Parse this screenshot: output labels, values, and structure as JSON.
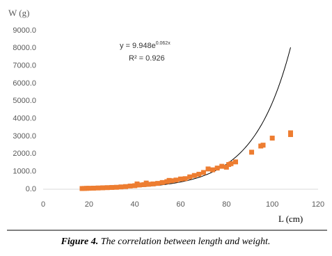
{
  "chart_data": {
    "type": "scatter",
    "y_label": "W (g)",
    "x_label": "L (cm)",
    "equation_prefix": "y = 9.948e",
    "equation_exponent": "0.062x",
    "r_squared_label": "R² = 0.926",
    "caption_label": "Figure 4.",
    "caption_text": "The correlation between length and weight.",
    "color": "#ed7d31",
    "trendline_color": "#000000",
    "trendline": {
      "a": 9.948,
      "b": 0.062,
      "xlim": [
        17,
        108
      ]
    },
    "x": [
      17,
      18,
      19,
      20,
      22,
      24,
      26,
      28,
      30,
      32,
      34,
      36,
      38,
      40,
      41,
      42,
      44,
      45,
      46,
      48,
      50,
      52,
      54,
      55,
      56,
      58,
      60,
      62,
      64,
      66,
      68,
      70,
      72,
      74,
      76,
      78,
      80,
      81,
      82,
      84,
      91,
      95,
      96,
      100,
      108,
      108
    ],
    "values": [
      40,
      45,
      50,
      55,
      60,
      70,
      80,
      90,
      100,
      110,
      130,
      150,
      180,
      200,
      300,
      240,
      260,
      350,
      280,
      300,
      330,
      380,
      430,
      500,
      480,
      520,
      580,
      600,
      700,
      780,
      850,
      950,
      1150,
      1100,
      1200,
      1300,
      1250,
      1400,
      1450,
      1550,
      2100,
      2450,
      2500,
      2900,
      3100,
      3200
    ],
    "xlim": [
      0,
      120
    ],
    "xticks": [
      0,
      20,
      40,
      60,
      80,
      100,
      120
    ],
    "ylim": [
      0,
      9000
    ],
    "yticks": [
      {
        "value": 0,
        "label": "0.0"
      },
      {
        "value": 1000,
        "label": "1000.0"
      },
      {
        "value": 2000,
        "label": "2000.0"
      },
      {
        "value": 3000,
        "label": "3000.0"
      },
      {
        "value": 4000,
        "label": "4000.0"
      },
      {
        "value": 5000,
        "label": "5000.0"
      },
      {
        "value": 6000,
        "label": "6000.0"
      },
      {
        "value": 7000,
        "label": "7000.0"
      },
      {
        "value": 8000,
        "label": "8000.0"
      },
      {
        "value": 9000,
        "label": "9000.0"
      }
    ],
    "grid": false
  }
}
